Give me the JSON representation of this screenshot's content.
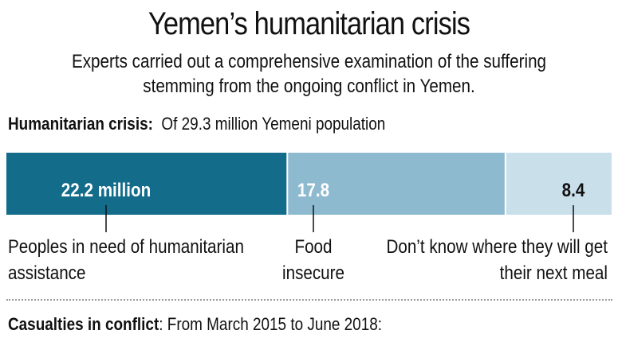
{
  "title": "Yemen’s humanitarian crisis",
  "subtitle_line1": "Experts carried out a comprehensive examination of the suffering",
  "subtitle_line2": "stemming from the ongoing conflict in Yemen.",
  "section": {
    "bold": "Humanitarian crisis:",
    "text": "Of 29.3 million Yemeni population"
  },
  "casualties": {
    "bold": "Casualties in conflict",
    "text": ": From March 2015 to June 2018:"
  },
  "chart_data": {
    "type": "bar",
    "orientation": "horizontal-stacked",
    "total": 29.3,
    "unit": "million",
    "segments": [
      {
        "value": 22.2,
        "value_label": "22.2 million",
        "color": "#136c8a",
        "text_color": "#ffffff",
        "label_lines": [
          "Peoples in need of humanitarian",
          "assistance"
        ],
        "align": "left"
      },
      {
        "value": 17.8,
        "value_label": "17.8",
        "color": "#8ebad0",
        "text_color": "#ffffff",
        "label_lines": [
          "Food",
          "insecure"
        ],
        "align": "center"
      },
      {
        "value": 8.4,
        "value_label": "8.4",
        "color": "#c9dfea",
        "text_color": "#111111",
        "label_lines": [
          "Don’t know where they will get",
          "their next meal"
        ],
        "align": "right"
      }
    ],
    "colors": {
      "border": "#ffffff",
      "tick": "#111111"
    }
  }
}
